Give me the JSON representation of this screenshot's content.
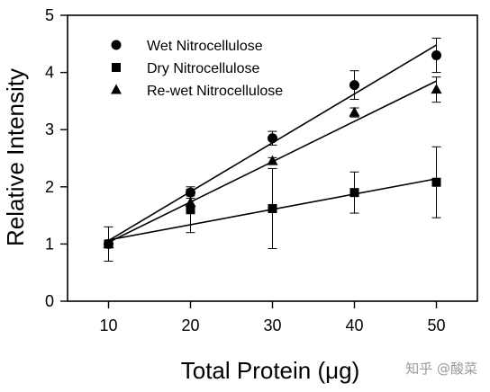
{
  "chart_data": {
    "type": "line",
    "xlabel": "Total Protein (μg)",
    "ylabel": "Relative Intensity",
    "xlim": [
      5,
      55
    ],
    "ylim": [
      0,
      5
    ],
    "xticks": [
      10,
      20,
      30,
      40,
      50
    ],
    "yticks": [
      0,
      1,
      2,
      3,
      4,
      5
    ],
    "legend_position": "top-left",
    "grid": false,
    "x": [
      10,
      20,
      30,
      40,
      50
    ],
    "series": [
      {
        "name": "Wet Nitrocellulose",
        "marker": "circle",
        "values": [
          1.0,
          1.9,
          2.85,
          3.78,
          4.3
        ],
        "errors": [
          0.0,
          0.06,
          0.12,
          0.25,
          0.3
        ],
        "fit": [
          1.06,
          4.48
        ]
      },
      {
        "name": "Dry Nitrocellulose",
        "marker": "square",
        "values": [
          1.0,
          1.6,
          1.62,
          1.9,
          2.08
        ],
        "errors": [
          0.3,
          0.4,
          0.7,
          0.36,
          0.62
        ],
        "fit": [
          1.07,
          2.14
        ]
      },
      {
        "name": "Re-wet Nitrocellulose",
        "marker": "triangle",
        "values": [
          1.0,
          1.72,
          2.45,
          3.3,
          3.7
        ],
        "errors": [
          0.0,
          0.08,
          0.06,
          0.08,
          0.22
        ],
        "fit": [
          1.03,
          3.85
        ]
      }
    ]
  },
  "watermark": "知乎 @酸菜"
}
